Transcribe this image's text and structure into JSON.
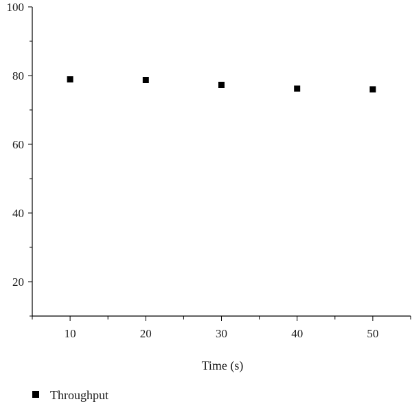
{
  "chart_data": {
    "type": "scatter",
    "title": "",
    "xlabel": "Time (s)",
    "ylabel": "",
    "xlim": [
      5,
      55
    ],
    "ylim": [
      10,
      100
    ],
    "x_ticks": [
      10,
      20,
      30,
      40,
      50
    ],
    "y_ticks": [
      20,
      40,
      60,
      80,
      100
    ],
    "x_tick_labels": [
      "10",
      "20",
      "30",
      "40",
      "50"
    ],
    "y_tick_labels": [
      "20",
      "40",
      "60",
      "80",
      "100"
    ],
    "grid": false,
    "legend_position": "bottom-left",
    "series": [
      {
        "name": "Throughput",
        "marker": "square",
        "color": "#000000",
        "x": [
          10,
          20,
          30,
          40,
          50
        ],
        "y": [
          78.9,
          78.7,
          77.3,
          76.2,
          76.0
        ]
      }
    ]
  }
}
